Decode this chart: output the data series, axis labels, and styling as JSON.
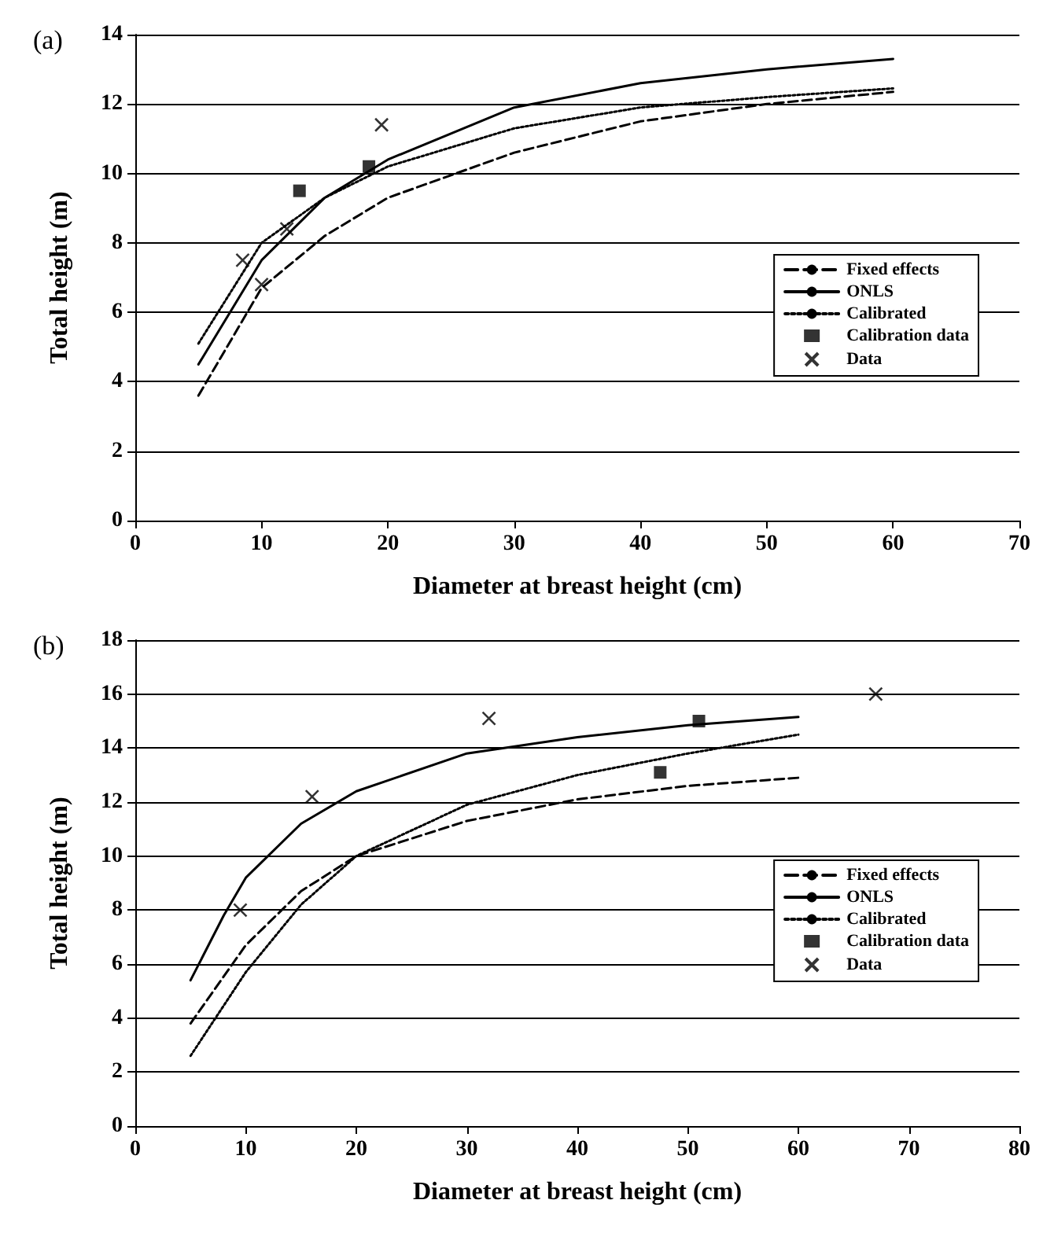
{
  "chart_data": [
    {
      "type": "line",
      "title": "(a)",
      "xlabel": "Diameter at breast height (cm)",
      "ylabel": "Total height (m)",
      "xlim": [
        0,
        70
      ],
      "xticks": [
        0,
        10,
        20,
        30,
        40,
        50,
        60,
        70
      ],
      "ylim": [
        0,
        14
      ],
      "yticks": [
        0,
        2,
        4,
        6,
        8,
        10,
        12,
        14
      ],
      "grid": "y",
      "legend": "right",
      "series": [
        {
          "name": "Fixed effects",
          "color": "#000000",
          "line_style": "dashed",
          "marker": "none",
          "x": [
            5,
            10,
            15,
            20,
            30,
            40,
            50,
            60
          ],
          "values": [
            3.6,
            6.7,
            8.2,
            9.3,
            10.6,
            11.5,
            12.0,
            12.35
          ]
        },
        {
          "name": "ONLS",
          "color": "#000000",
          "line_style": "solid",
          "marker": "none",
          "x": [
            5,
            10,
            15,
            20,
            30,
            40,
            50,
            60
          ],
          "values": [
            4.5,
            7.5,
            9.3,
            10.4,
            11.9,
            12.6,
            13.0,
            13.3
          ]
        },
        {
          "name": "Calibrated",
          "color": "#000000",
          "line_style": "dotted",
          "marker": "none",
          "x": [
            5,
            10,
            15,
            20,
            30,
            40,
            50,
            60
          ],
          "values": [
            5.1,
            8.0,
            9.3,
            10.2,
            11.3,
            11.9,
            12.2,
            12.45
          ]
        },
        {
          "name": "Calibration data",
          "type": "scatter",
          "color": "#000000",
          "marker": "square",
          "x": [
            13,
            18.5
          ],
          "values": [
            9.5,
            10.2
          ]
        },
        {
          "name": "Data",
          "type": "scatter",
          "color": "#000000",
          "marker": "cross",
          "x": [
            8.5,
            10,
            12,
            19.5
          ],
          "values": [
            7.5,
            6.8,
            8.4,
            11.4
          ]
        }
      ]
    },
    {
      "type": "line",
      "title": "(b)",
      "xlabel": "Diameter at breast height (cm)",
      "ylabel": "Total height (m)",
      "xlim": [
        0,
        80
      ],
      "xticks": [
        0,
        10,
        20,
        30,
        40,
        50,
        60,
        70,
        80
      ],
      "ylim": [
        0,
        18
      ],
      "yticks": [
        0,
        2,
        4,
        6,
        8,
        10,
        12,
        14,
        16,
        18
      ],
      "grid": "y",
      "legend": "right",
      "series": [
        {
          "name": "Fixed effects",
          "color": "#000000",
          "line_style": "dashed",
          "marker": "none",
          "x": [
            5,
            10,
            15,
            20,
            30,
            40,
            50,
            60
          ],
          "values": [
            3.8,
            6.7,
            8.7,
            10.0,
            11.3,
            12.1,
            12.6,
            12.9
          ]
        },
        {
          "name": "ONLS",
          "color": "#000000",
          "line_style": "solid",
          "marker": "none",
          "x": [
            5,
            8,
            10,
            15,
            20,
            30,
            40,
            50,
            60
          ],
          "values": [
            5.4,
            7.8,
            9.2,
            11.2,
            12.4,
            13.8,
            14.4,
            14.85,
            15.15
          ]
        },
        {
          "name": "Calibrated",
          "color": "#000000",
          "line_style": "dotted",
          "marker": "none",
          "x": [
            5,
            10,
            15,
            20,
            30,
            40,
            50,
            60
          ],
          "values": [
            2.6,
            5.7,
            8.2,
            10.0,
            11.9,
            13.0,
            13.8,
            14.5
          ]
        },
        {
          "name": "Calibration data",
          "type": "scatter",
          "color": "#000000",
          "marker": "square",
          "x": [
            51,
            47.5
          ],
          "values": [
            15.0,
            13.1
          ]
        },
        {
          "name": "Data",
          "type": "scatter",
          "color": "#000000",
          "marker": "cross",
          "x": [
            9.5,
            16,
            32,
            67
          ],
          "values": [
            8.0,
            12.2,
            15.1,
            16.0
          ]
        }
      ]
    }
  ]
}
